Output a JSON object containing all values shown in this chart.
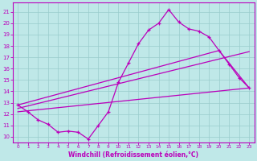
{
  "xlabel": "Windchill (Refroidissement éolien,°C)",
  "xlim": [
    -0.5,
    23.5
  ],
  "ylim": [
    9.5,
    21.8
  ],
  "xticks": [
    0,
    1,
    2,
    3,
    4,
    5,
    6,
    7,
    8,
    9,
    10,
    11,
    12,
    13,
    14,
    15,
    16,
    17,
    18,
    19,
    20,
    21,
    22,
    23
  ],
  "yticks": [
    10,
    11,
    12,
    13,
    14,
    15,
    16,
    17,
    18,
    19,
    20,
    21
  ],
  "bg_color": "#bfe8e8",
  "line_color": "#bb00bb",
  "grid_color": "#99cccc",
  "main_line_x": [
    0,
    1,
    2,
    3,
    4,
    5,
    6,
    7,
    8,
    9,
    10,
    11,
    12,
    13,
    14,
    15,
    16,
    17,
    18,
    19,
    20,
    21,
    22,
    23
  ],
  "main_line_y": [
    12.8,
    12.2,
    11.5,
    11.1,
    10.4,
    10.5,
    10.4,
    9.8,
    11.0,
    12.2,
    14.8,
    16.5,
    18.2,
    19.4,
    20.0,
    21.2,
    20.1,
    19.5,
    19.3,
    18.8,
    17.6,
    16.4,
    15.2,
    14.3
  ],
  "line2_x": [
    0,
    23
  ],
  "line2_y": [
    12.2,
    14.3
  ],
  "line3_x": [
    0,
    23
  ],
  "line3_y": [
    12.5,
    17.5
  ],
  "line4_x": [
    0,
    20,
    23
  ],
  "line4_y": [
    12.8,
    17.6,
    14.3
  ]
}
